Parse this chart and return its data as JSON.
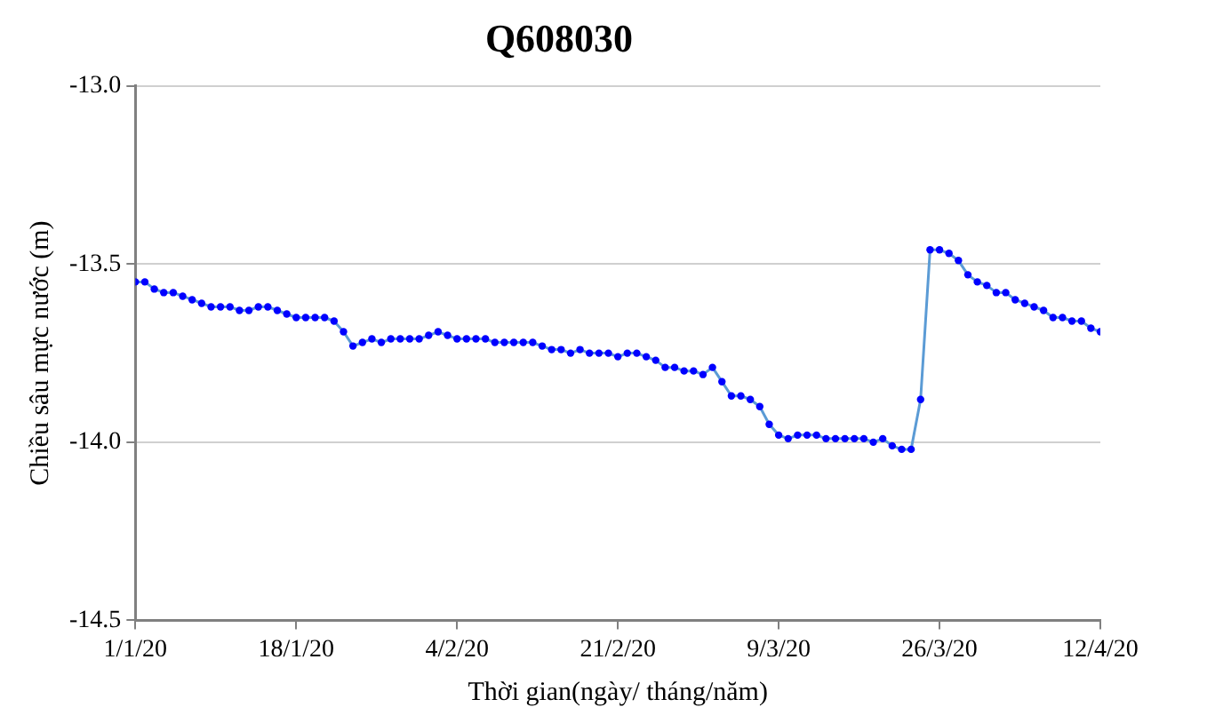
{
  "chart_data": {
    "type": "line",
    "title": "Q608030",
    "xlabel": "Thời gian(ngày/ tháng/năm)",
    "ylabel": "Chiều sâu mực nước (m)",
    "x": [
      "2020-01-01",
      "2020-01-02",
      "2020-01-03",
      "2020-01-04",
      "2020-01-05",
      "2020-01-06",
      "2020-01-07",
      "2020-01-08",
      "2020-01-09",
      "2020-01-10",
      "2020-01-11",
      "2020-01-12",
      "2020-01-13",
      "2020-01-14",
      "2020-01-15",
      "2020-01-16",
      "2020-01-17",
      "2020-01-18",
      "2020-01-19",
      "2020-01-20",
      "2020-01-21",
      "2020-01-22",
      "2020-01-23",
      "2020-01-24",
      "2020-01-25",
      "2020-01-26",
      "2020-01-27",
      "2020-01-28",
      "2020-01-29",
      "2020-01-30",
      "2020-01-31",
      "2020-02-01",
      "2020-02-02",
      "2020-02-03",
      "2020-02-04",
      "2020-02-05",
      "2020-02-06",
      "2020-02-07",
      "2020-02-08",
      "2020-02-09",
      "2020-02-10",
      "2020-02-11",
      "2020-02-12",
      "2020-02-13",
      "2020-02-14",
      "2020-02-15",
      "2020-02-16",
      "2020-02-17",
      "2020-02-18",
      "2020-02-19",
      "2020-02-20",
      "2020-02-21",
      "2020-02-22",
      "2020-02-23",
      "2020-02-24",
      "2020-02-25",
      "2020-02-26",
      "2020-02-27",
      "2020-02-28",
      "2020-02-29",
      "2020-03-01",
      "2020-03-02",
      "2020-03-03",
      "2020-03-04",
      "2020-03-05",
      "2020-03-06",
      "2020-03-07",
      "2020-03-08",
      "2020-03-09",
      "2020-03-10",
      "2020-03-11",
      "2020-03-12",
      "2020-03-13",
      "2020-03-14",
      "2020-03-15",
      "2020-03-16",
      "2020-03-17",
      "2020-03-18",
      "2020-03-19",
      "2020-03-20",
      "2020-03-21",
      "2020-03-22",
      "2020-03-23",
      "2020-03-24",
      "2020-03-25",
      "2020-03-26",
      "2020-03-27",
      "2020-03-28",
      "2020-03-29",
      "2020-03-30",
      "2020-03-31",
      "2020-04-01",
      "2020-04-02",
      "2020-04-03",
      "2020-04-04",
      "2020-04-05",
      "2020-04-06",
      "2020-04-07",
      "2020-04-08",
      "2020-04-09",
      "2020-04-10",
      "2020-04-11",
      "2020-04-12"
    ],
    "series": [
      {
        "color": "#0000ff",
        "values": [
          -13.55,
          -13.55,
          -13.57,
          -13.58,
          -13.58,
          -13.59,
          -13.6,
          -13.61,
          -13.62,
          -13.62,
          -13.62,
          -13.63,
          -13.63,
          -13.62,
          -13.62,
          -13.63,
          -13.64,
          -13.65,
          -13.65,
          -13.65,
          -13.65,
          -13.66,
          -13.69,
          -13.73,
          -13.72,
          -13.71,
          -13.72,
          -13.71,
          -13.71,
          -13.71,
          -13.71,
          -13.7,
          -13.69,
          -13.7,
          -13.71,
          -13.71,
          -13.71,
          -13.71,
          -13.72,
          -13.72,
          -13.72,
          -13.72,
          -13.72,
          -13.73,
          -13.74,
          -13.74,
          -13.75,
          -13.74,
          -13.75,
          -13.75,
          -13.75,
          -13.76,
          -13.75,
          -13.75,
          -13.76,
          -13.77,
          -13.79,
          -13.79,
          -13.8,
          -13.8,
          -13.81,
          -13.79,
          -13.83,
          -13.87,
          -13.87,
          -13.88,
          -13.9,
          -13.95,
          -13.98,
          -13.99,
          -13.98,
          -13.98,
          -13.98,
          -13.99,
          -13.99,
          -13.99,
          -13.99,
          -13.99,
          -14.0,
          -13.99,
          -14.01,
          -14.02,
          -14.02,
          -13.88,
          -13.46,
          -13.46,
          -13.47,
          -13.49,
          -13.53,
          -13.55,
          -13.56,
          -13.58,
          -13.58,
          -13.6,
          -13.61,
          -13.62,
          -13.63,
          -13.65,
          -13.65,
          -13.66,
          -13.66,
          -13.68,
          -13.69
        ]
      }
    ],
    "xlim": [
      "2020-01-01",
      "2020-04-12"
    ],
    "xticks": [
      {
        "value": "2020-01-01",
        "label": "1/1/20"
      },
      {
        "value": "2020-01-18",
        "label": "18/1/20"
      },
      {
        "value": "2020-02-04",
        "label": "4/2/20"
      },
      {
        "value": "2020-02-21",
        "label": "21/2/20"
      },
      {
        "value": "2020-03-09",
        "label": "9/3/20"
      },
      {
        "value": "2020-03-26",
        "label": "26/3/20"
      },
      {
        "value": "2020-04-12",
        "label": "12/4/20"
      }
    ],
    "ylim": [
      -14.5,
      -13.0
    ],
    "yticks": [
      {
        "value": -14.5,
        "label": "-14.5"
      },
      {
        "value": -14.0,
        "label": "-14.0"
      },
      {
        "value": -13.5,
        "label": "-13.5"
      },
      {
        "value": -13.0,
        "label": "-13.0"
      }
    ],
    "grid": "y",
    "marker": "circle",
    "line_style": "solid",
    "legend": false
  }
}
